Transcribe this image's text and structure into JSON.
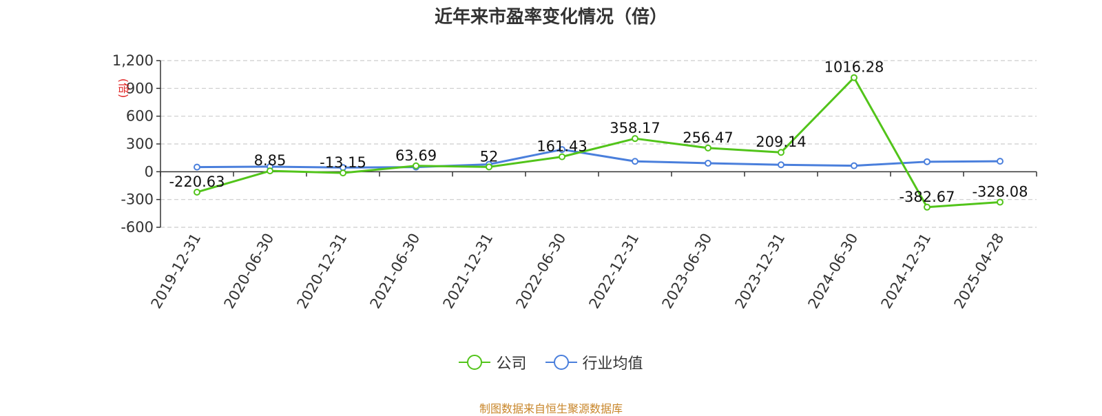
{
  "chart_data": {
    "type": "line",
    "title": "近年来市盈率变化情况（倍）",
    "ylabel": "(倍)",
    "xlabel": "",
    "categories": [
      "2019-12-31",
      "2020-06-30",
      "2020-12-31",
      "2021-06-30",
      "2021-12-31",
      "2022-06-30",
      "2022-12-31",
      "2023-06-30",
      "2023-12-31",
      "2024-06-30",
      "2024-12-31",
      "2025-04-28"
    ],
    "yticks": [
      "1,200",
      "900",
      "600",
      "300",
      "0",
      "-300",
      "-600"
    ],
    "ytick_values": [
      1200,
      900,
      600,
      300,
      0,
      -300,
      -600
    ],
    "ylim": [
      -600,
      1200
    ],
    "grid": true,
    "legend_position": "bottom",
    "series": [
      {
        "name": "公司",
        "color": "#52c41a",
        "values": [
          -220.63,
          8.85,
          -13.15,
          63.69,
          52,
          161.43,
          358.17,
          256.47,
          209.14,
          1016.28,
          -382.67,
          -328.08
        ],
        "labels": [
          "-220.63",
          "8.85",
          "-13.15",
          "63.69",
          "52",
          "161.43",
          "358.17",
          "256.47",
          "209.14",
          "1016.28",
          "-382.67",
          "-328.08"
        ]
      },
      {
        "name": "行业均值",
        "color": "#4a7fdc",
        "values": [
          50,
          55,
          45,
          50,
          80,
          240,
          112,
          92,
          75,
          65,
          108,
          113
        ]
      }
    ]
  },
  "source_note": "制图数据来自恒生聚源数据库"
}
